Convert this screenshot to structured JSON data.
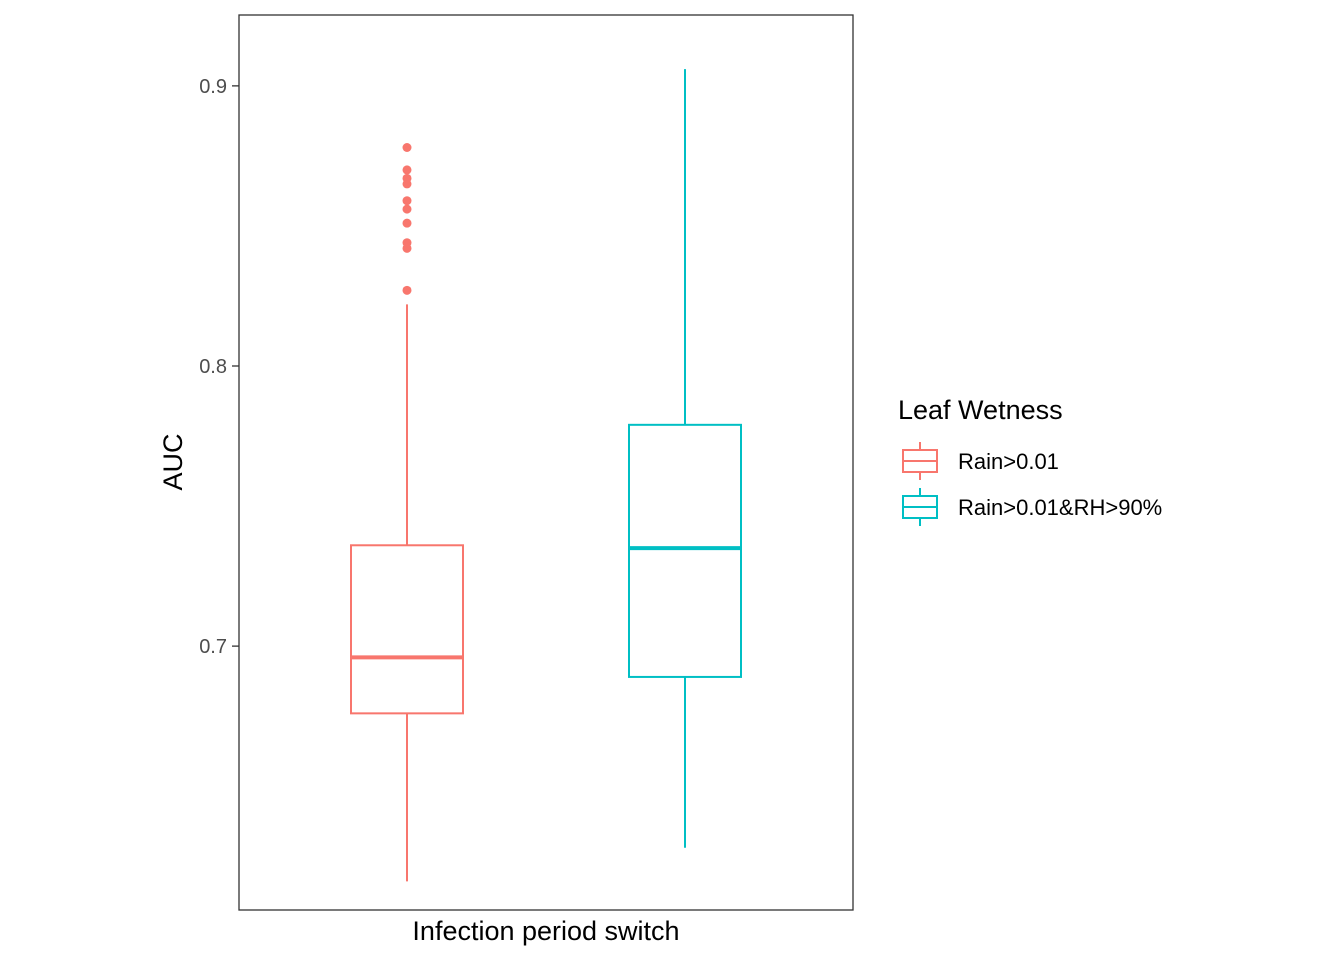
{
  "chart_data": {
    "type": "box",
    "xlabel": "Infection period switch",
    "ylabel": "AUC",
    "ylim": [
      0.6058,
      0.9253
    ],
    "yticks": [
      0.7,
      0.8,
      0.9
    ],
    "ytick_labels": [
      "0.7",
      "0.8",
      "0.9"
    ],
    "grid": false,
    "legend": {
      "title": "Leaf Wetness",
      "placement": "right"
    },
    "series": [
      {
        "name": "Rain>0.01",
        "color": "#F8766D",
        "whisker_low": 0.616,
        "q1": 0.676,
        "median": 0.696,
        "q3": 0.736,
        "whisker_high": 0.822,
        "outliers": [
          0.827,
          0.842,
          0.844,
          0.851,
          0.856,
          0.859,
          0.865,
          0.867,
          0.87,
          0.878
        ]
      },
      {
        "name": "Rain>0.01&RH>90%",
        "color": "#00BFC4",
        "whisker_low": 0.628,
        "q1": 0.689,
        "median": 0.735,
        "q3": 0.779,
        "whisker_high": 0.906,
        "outliers": []
      }
    ]
  }
}
